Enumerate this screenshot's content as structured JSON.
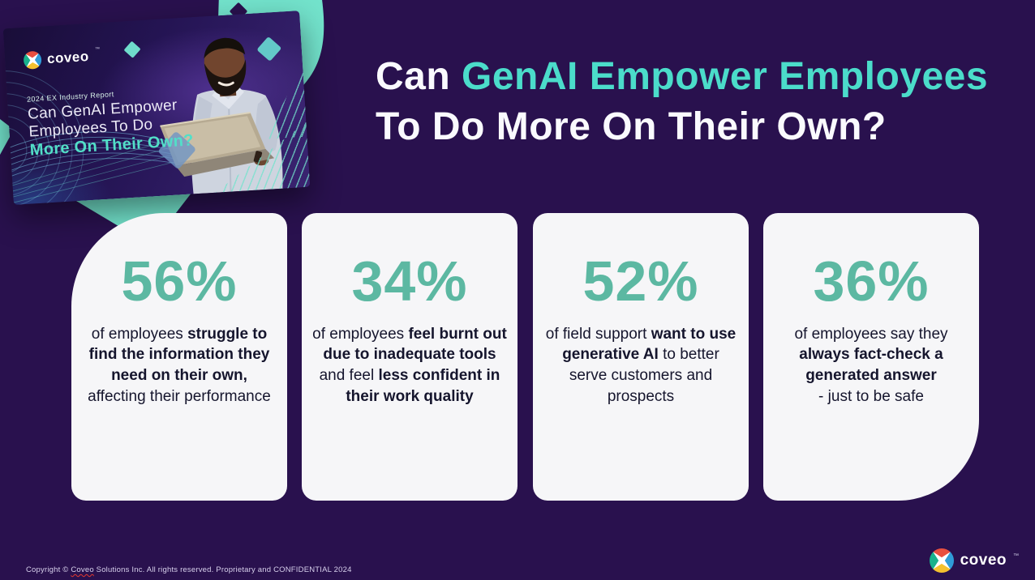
{
  "slide_type": "infographic-slide",
  "colors": {
    "background": "#29114E",
    "mint": "#73E3CC",
    "heading_teal": "#4BDCCA",
    "stat_teal": "#5CB8A2",
    "card_bg": "#F6F6F8",
    "card_text": "#15152D",
    "logo_red": "#E8503F",
    "logo_blue": "#2F9CD8",
    "logo_yellow": "#F3C12F",
    "logo_green": "#19B28C"
  },
  "icons": {
    "brand_mark": "coveo-pinwheel-icon",
    "diamonds": "diamond-accent-icon"
  },
  "header": {
    "line1_pre": "Can ",
    "line1_highlight": "GenAI Empower Employees",
    "line2": "To Do More On Their Own?"
  },
  "report_card": {
    "brand": "coveo",
    "tm": "™",
    "eyebrow": "2024 EX Industry Report",
    "title1": "Can GenAI Empower",
    "title2": "Employees To Do",
    "title3": "More On Their Own?"
  },
  "stats": [
    {
      "value": "56%",
      "segments": [
        {
          "t": "of employees "
        },
        {
          "t": "struggle to find the information they need on their own,",
          "b": true
        },
        {
          "t": " affecting their performance"
        }
      ]
    },
    {
      "value": "34%",
      "segments": [
        {
          "t": "of employees "
        },
        {
          "t": "feel burnt out due to inadequate tools",
          "b": true
        },
        {
          "t": " and feel "
        },
        {
          "t": "less confident in their work quality",
          "b": true
        }
      ]
    },
    {
      "value": "52%",
      "segments": [
        {
          "t": "of field support "
        },
        {
          "t": "want to use generative AI",
          "b": true
        },
        {
          "t": " to better serve customers and prospects"
        }
      ]
    },
    {
      "value": "36%",
      "segments": [
        {
          "t": "of employees say they "
        },
        {
          "t": "always fact-check a generated answer",
          "b": true
        },
        {
          "t": "\n- just to be safe"
        }
      ]
    }
  ],
  "footer": {
    "copyright_segments": [
      {
        "t": "Copyright © "
      },
      {
        "t": "Coveo",
        "u": true
      },
      {
        "t": " Solutions Inc. All rights reserved. Proprietary and CONFIDENTIAL 2024"
      }
    ],
    "brand": "coveo",
    "tm": "™"
  }
}
